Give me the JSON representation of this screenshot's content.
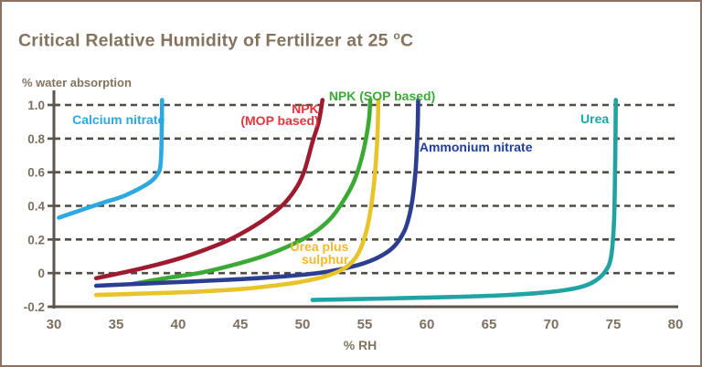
{
  "frame": {
    "border_color": "#8a7161",
    "background": "#ffffff"
  },
  "title": {
    "main": "Critical Relative Humidity of Fertilizer at 25 ",
    "degree_mark": "o",
    "unit": "C",
    "color": "#84735e"
  },
  "chart_data": {
    "type": "line",
    "title": "Critical Relative Humidity of Fertilizer at 25 oC",
    "xlabel": "% RH",
    "ylabel": "% water absorption",
    "xlim": [
      30,
      80
    ],
    "ylim": [
      -0.2,
      1.0
    ],
    "grid": "horizontal-dashed",
    "legend_position": "inline-labels",
    "axis_color": "#5d544b",
    "grid_color": "#514b45",
    "tick_label_color": "#7d6f60",
    "x_ticks": [
      {
        "v": 30,
        "label": "30"
      },
      {
        "v": 35,
        "label": "35"
      },
      {
        "v": 40,
        "label": "40"
      },
      {
        "v": 45,
        "label": "45"
      },
      {
        "v": 50,
        "label": "50"
      },
      {
        "v": 55,
        "label": "55"
      },
      {
        "v": 60,
        "label": "60"
      },
      {
        "v": 65,
        "label": "65"
      },
      {
        "v": 70,
        "label": "70"
      },
      {
        "v": 75,
        "label": "75"
      },
      {
        "v": 80,
        "label": "80"
      }
    ],
    "y_ticks": [
      {
        "v": 1.0,
        "label": "1.0",
        "gridline": true
      },
      {
        "v": 0.8,
        "label": "0.8",
        "gridline": true
      },
      {
        "v": 0.6,
        "label": "0.6",
        "gridline": true
      },
      {
        "v": 0.4,
        "label": "0.4",
        "gridline": true
      },
      {
        "v": 0.2,
        "label": "0.2",
        "gridline": true
      },
      {
        "v": 0.0,
        "label": "0",
        "gridline": true
      },
      {
        "v": -0.2,
        "label": "-0.2",
        "gridline": false
      }
    ],
    "series": [
      {
        "id": "calcium-nitrate",
        "name": "Calcium nitrate",
        "color": "#2ba9e0",
        "critical_rh": 38.7,
        "points": [
          [
            30.4,
            0.33
          ],
          [
            32,
            0.37
          ],
          [
            34,
            0.42
          ],
          [
            35.5,
            0.455
          ],
          [
            36.8,
            0.5
          ],
          [
            37.8,
            0.545
          ],
          [
            38.3,
            0.585
          ],
          [
            38.55,
            0.63
          ],
          [
            38.65,
            0.75
          ],
          [
            38.7,
            1.03
          ]
        ]
      },
      {
        "id": "npk-mop",
        "name": "NPK (MOP based)",
        "color": "#9e1b2f",
        "critical_rh": 51.6,
        "points": [
          [
            33.4,
            -0.03
          ],
          [
            36,
            0.01
          ],
          [
            38,
            0.045
          ],
          [
            40,
            0.085
          ],
          [
            42,
            0.135
          ],
          [
            44,
            0.195
          ],
          [
            46,
            0.275
          ],
          [
            47.5,
            0.35
          ],
          [
            48.6,
            0.42
          ],
          [
            49.6,
            0.52
          ],
          [
            50.2,
            0.62
          ],
          [
            50.8,
            0.78
          ],
          [
            51.3,
            0.9
          ],
          [
            51.6,
            1.03
          ]
        ]
      },
      {
        "id": "npk-sop",
        "name": "NPK (SOP based)",
        "color": "#3baa35",
        "critical_rh": 55.5,
        "points": [
          [
            36.3,
            -0.065
          ],
          [
            39,
            -0.03
          ],
          [
            42,
            0.005
          ],
          [
            45,
            0.06
          ],
          [
            47,
            0.105
          ],
          [
            49,
            0.165
          ],
          [
            50.8,
            0.235
          ],
          [
            52.2,
            0.32
          ],
          [
            53.2,
            0.42
          ],
          [
            54.1,
            0.54
          ],
          [
            54.7,
            0.67
          ],
          [
            55.1,
            0.8
          ],
          [
            55.35,
            0.92
          ],
          [
            55.45,
            1.03
          ]
        ]
      },
      {
        "id": "ammonium-nitrate",
        "name": "Ammonium nitrate",
        "color": "#2c3e8f",
        "critical_rh": 59.3,
        "points": [
          [
            33.4,
            -0.075
          ],
          [
            37,
            -0.063
          ],
          [
            41,
            -0.05
          ],
          [
            45,
            -0.036
          ],
          [
            48,
            -0.022
          ],
          [
            51,
            -0.002
          ],
          [
            53,
            0.022
          ],
          [
            55,
            0.06
          ],
          [
            56.5,
            0.11
          ],
          [
            57.5,
            0.17
          ],
          [
            58.3,
            0.27
          ],
          [
            58.8,
            0.42
          ],
          [
            59.1,
            0.62
          ],
          [
            59.25,
            0.85
          ],
          [
            59.3,
            1.03
          ]
        ]
      },
      {
        "id": "urea-plus-sulphur",
        "name": "Urea plus sulphur",
        "color": "#e9c32a",
        "critical_rh": 56.1,
        "points": [
          [
            33.4,
            -0.13
          ],
          [
            37,
            -0.122
          ],
          [
            41,
            -0.112
          ],
          [
            45,
            -0.095
          ],
          [
            48,
            -0.072
          ],
          [
            50,
            -0.05
          ],
          [
            52,
            -0.015
          ],
          [
            53.5,
            0.035
          ],
          [
            54.5,
            0.12
          ],
          [
            55.2,
            0.27
          ],
          [
            55.7,
            0.5
          ],
          [
            56.0,
            0.78
          ],
          [
            56.1,
            1.03
          ]
        ]
      },
      {
        "id": "urea",
        "name": "Urea",
        "color": "#21a3a3",
        "critical_rh": 75.2,
        "points": [
          [
            50.8,
            -0.16
          ],
          [
            54,
            -0.155
          ],
          [
            58,
            -0.149
          ],
          [
            62,
            -0.142
          ],
          [
            66,
            -0.132
          ],
          [
            69,
            -0.118
          ],
          [
            71,
            -0.102
          ],
          [
            72.5,
            -0.08
          ],
          [
            73.5,
            -0.048
          ],
          [
            74.3,
            0.005
          ],
          [
            74.8,
            0.09
          ],
          [
            75.05,
            0.3
          ],
          [
            75.15,
            0.65
          ],
          [
            75.2,
            1.03
          ]
        ]
      }
    ],
    "annotations": [
      {
        "id": "calcium-nitrate",
        "lines": [
          "Calcium nitrate"
        ],
        "color": "#2ba9e0",
        "rh": 35.2,
        "val": 0.946,
        "align": "center"
      },
      {
        "id": "npk-mop",
        "lines": [
          "NPK",
          "(MOP based)"
        ],
        "color": "#e6333c",
        "rh": 51.3,
        "val": 1.012,
        "align": "right"
      },
      {
        "id": "npk-sop",
        "lines": [
          "NPK (SOP based)"
        ],
        "color": "#3baa35",
        "rh": 56.4,
        "val": 1.087,
        "align": "center"
      },
      {
        "id": "ammonium-nitrate",
        "lines": [
          "Ammonium nitrate"
        ],
        "color": "#1f3e9e",
        "rh": 59.4,
        "val": 0.783,
        "align": "left"
      },
      {
        "id": "urea-plus-sulphur",
        "lines": [
          "Urea plus",
          "sulphur"
        ],
        "color": "#f5b82a",
        "rh": 53.7,
        "val": 0.19,
        "align": "right"
      },
      {
        "id": "urea",
        "lines": [
          "Urea"
        ],
        "color": "#1ba6ad",
        "rh": 73.5,
        "val": 0.951,
        "align": "center"
      }
    ]
  }
}
